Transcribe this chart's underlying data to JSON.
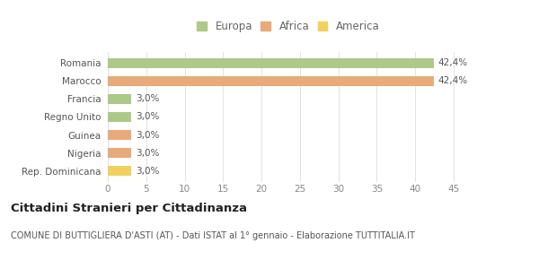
{
  "categories": [
    "Romania",
    "Marocco",
    "Francia",
    "Regno Unito",
    "Guinea",
    "Nigeria",
    "Rep. Dominicana"
  ],
  "values": [
    42.4,
    42.4,
    3.0,
    3.0,
    3.0,
    3.0,
    3.0
  ],
  "labels": [
    "42,4%",
    "42,4%",
    "3,0%",
    "3,0%",
    "3,0%",
    "3,0%",
    "3,0%"
  ],
  "colors": [
    "#adc98a",
    "#e8aa78",
    "#adc98a",
    "#adc98a",
    "#e8aa78",
    "#e8aa78",
    "#f2d060"
  ],
  "legend_labels": [
    "Europa",
    "Africa",
    "America"
  ],
  "legend_colors": [
    "#adc98a",
    "#e8aa78",
    "#f2d060"
  ],
  "xlim": [
    0,
    47
  ],
  "xticks": [
    0,
    5,
    10,
    15,
    20,
    25,
    30,
    35,
    40,
    45
  ],
  "title": "Cittadini Stranieri per Cittadinanza",
  "subtitle": "COMUNE DI BUTTIGLIERA D'ASTI (AT) - Dati ISTAT al 1° gennaio - Elaborazione TUTTITALIA.IT",
  "background_color": "#ffffff",
  "bar_height": 0.55,
  "title_fontsize": 9.5,
  "subtitle_fontsize": 7,
  "label_fontsize": 7.5,
  "tick_fontsize": 7.5,
  "legend_fontsize": 8.5
}
